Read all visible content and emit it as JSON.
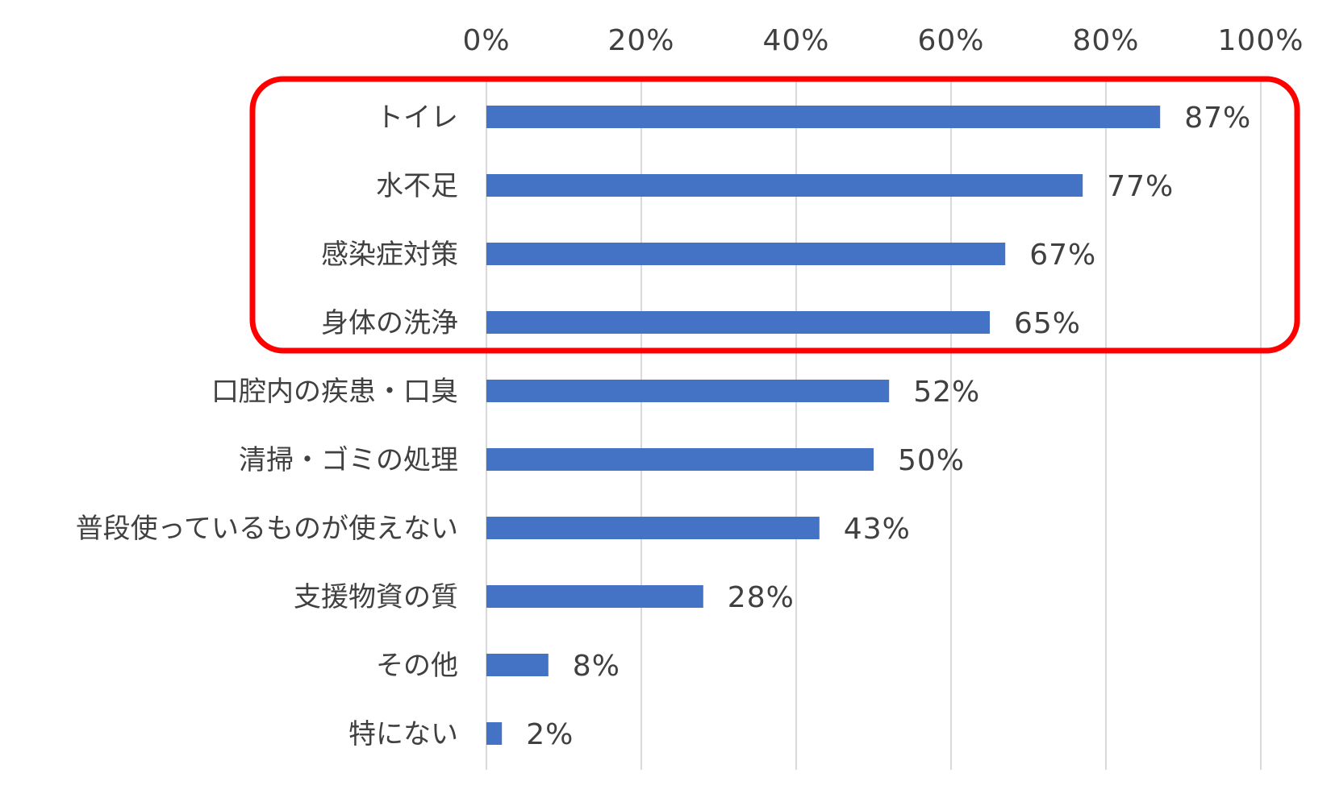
{
  "chart_data": {
    "type": "bar",
    "orientation": "horizontal",
    "categories": [
      "トイレ",
      "水不足",
      "感染症対策",
      "身体の洗浄",
      "口腔内の疾患・口臭",
      "清掃・ゴミの処理",
      "普段使っているものが使えない",
      "支援物資の質",
      "その他",
      "特にない"
    ],
    "values": [
      87,
      77,
      67,
      65,
      52,
      50,
      43,
      28,
      8,
      2
    ],
    "value_labels": [
      "87%",
      "77%",
      "67%",
      "65%",
      "52%",
      "50%",
      "43%",
      "28%",
      "8%",
      "2%"
    ],
    "xlim": [
      0,
      100
    ],
    "x_ticks": [
      0,
      20,
      40,
      60,
      80,
      100
    ],
    "x_tick_labels": [
      "0%",
      "20%",
      "40%",
      "60%",
      "80%",
      "100%"
    ],
    "x_axis_position": "top",
    "grid": "vertical",
    "legend": "none",
    "highlight": {
      "categories": [
        "トイレ",
        "水不足",
        "感染症対策",
        "身体の洗浄"
      ],
      "style": "rounded-rectangle-outline"
    },
    "title": "",
    "xlabel": "",
    "ylabel": ""
  },
  "colors": {
    "bar": "#4472c4",
    "highlight": "#ff0000",
    "grid": "#d9d9d9",
    "text": "#404040"
  }
}
